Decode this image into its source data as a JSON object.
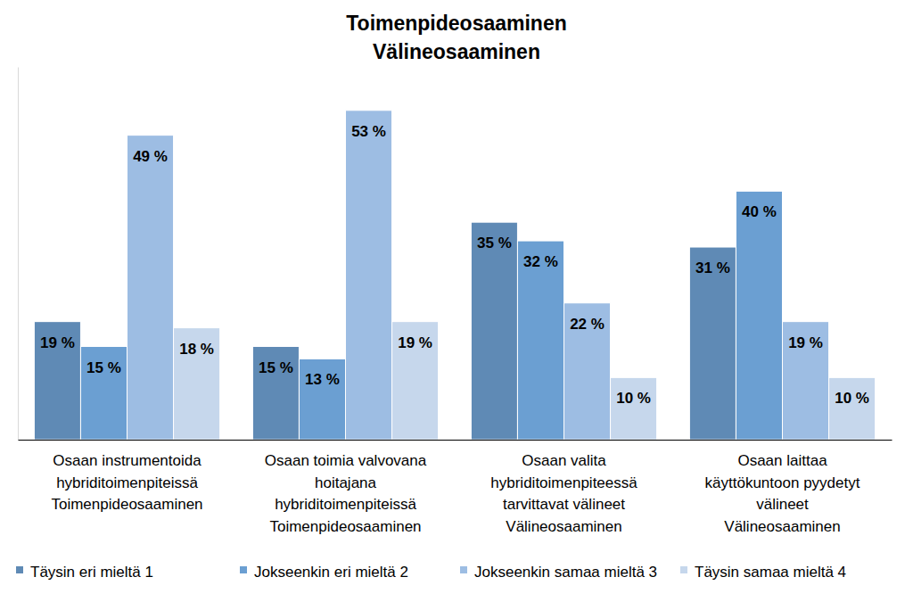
{
  "chart_data": {
    "type": "bar",
    "title": "Toimenpideosaaminen\nVälineosaaminen",
    "categories": [
      "Osaan instrumentoida\nhybriditoimenpiteissä\nToimenpideosaaminen",
      "Osaan toimia valvovana\nhoitajana\nhybriditoimenpiteissä\nToimenpideosaaminen",
      "Osaan valita\nhybriditoimenpiteessä\ntarvittavat välineet\nVälineosaaminen",
      "Osaan laittaa\nkäyttökuntoon pyydetyt\nvälineet\nVälineosaaminen"
    ],
    "series": [
      {
        "name": "Täysin eri mieltä 1",
        "color": "#5f8ab5",
        "values": [
          19,
          15,
          35,
          31
        ],
        "value_labels": [
          "19 %",
          "15 %",
          "35 %",
          "31 %"
        ]
      },
      {
        "name": "Jokseenkin eri mieltä 2",
        "color": "#6b9fd2",
        "values": [
          15,
          13,
          32,
          40
        ],
        "value_labels": [
          "15 %",
          "13 %",
          "32 %",
          "40 %"
        ]
      },
      {
        "name": "Jokseenkin samaa mieltä 3",
        "color": "#9dbde3",
        "values": [
          49,
          53,
          22,
          19
        ],
        "value_labels": [
          "49 %",
          "53 %",
          "22 %",
          "19 %"
        ]
      },
      {
        "name": "Täysin samaa mieltä 4",
        "color": "#c6d7ec",
        "values": [
          18,
          19,
          10,
          10
        ],
        "value_labels": [
          "18 %",
          "19 %",
          "10 %",
          "10 %"
        ]
      }
    ],
    "ylim": [
      0,
      60
    ],
    "grid": false,
    "legend": "bottom",
    "data_labels": true,
    "tick_labels": "x"
  }
}
